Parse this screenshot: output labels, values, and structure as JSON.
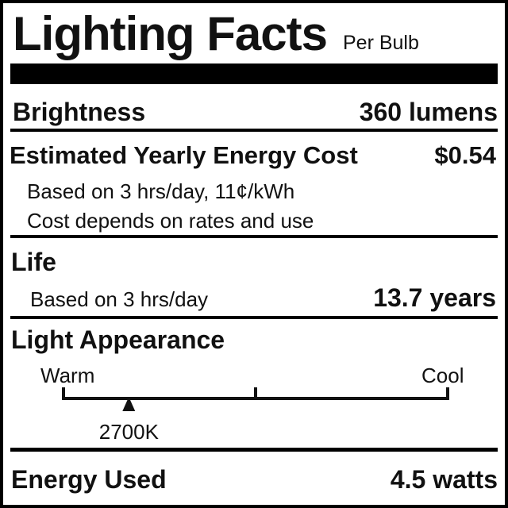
{
  "header": {
    "title": "Lighting Facts",
    "subtitle": "Per Bulb"
  },
  "brightness": {
    "label": "Brightness",
    "value": "360 lumens"
  },
  "energy_cost": {
    "label": "Estimated Yearly Energy Cost",
    "value": "$0.54",
    "note1": "Based on 3 hrs/day, 11¢/kWh",
    "note2": "Cost depends on rates and use"
  },
  "life": {
    "label": "Life",
    "note": "Based on 3 hrs/day",
    "value": "13.7 years"
  },
  "light_appearance": {
    "label": "Light Appearance",
    "warm_label": "Warm",
    "cool_label": "Cool",
    "value": "2700K",
    "scale_position": 0.17
  },
  "energy_used": {
    "label": "Energy Used",
    "value": "4.5 watts"
  }
}
